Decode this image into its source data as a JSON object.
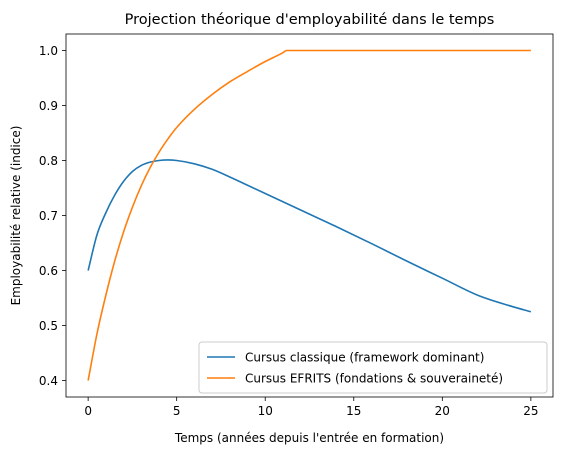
{
  "chart_data": {
    "type": "line",
    "title": "Projection théorique d'employabilité dans le temps",
    "xlabel": "Temps (années depuis l'entrée en formation)",
    "ylabel": "Employabilité relative (indice)",
    "xlim": [
      -1.25,
      26.25
    ],
    "ylim": [
      0.37,
      1.03
    ],
    "xticks": [
      0,
      5,
      10,
      15,
      20,
      25
    ],
    "yticks": [
      0.4,
      0.5,
      0.6,
      0.7,
      0.8,
      0.9,
      1.0
    ],
    "xtick_labels": [
      "0",
      "5",
      "10",
      "15",
      "20",
      "25"
    ],
    "ytick_labels": [
      "0.4",
      "0.5",
      "0.6",
      "0.7",
      "0.8",
      "0.9",
      "1.0"
    ],
    "grid": false,
    "legend_position": "lower-right",
    "series": [
      {
        "name": "Cursus classique (framework dominant)",
        "color": "#1f77b4",
        "x": [
          0,
          0.5,
          1,
          1.5,
          2,
          2.5,
          3,
          3.5,
          4,
          4.5,
          5,
          6,
          7,
          8,
          9,
          10,
          12,
          14,
          16,
          18,
          20,
          22,
          24,
          25
        ],
        "y": [
          0.6,
          0.665,
          0.705,
          0.737,
          0.762,
          0.78,
          0.791,
          0.797,
          0.8,
          0.801,
          0.8,
          0.794,
          0.784,
          0.77,
          0.755,
          0.74,
          0.71,
          0.68,
          0.649,
          0.617,
          0.586,
          0.555,
          0.534,
          0.525
        ]
      },
      {
        "name": "Cursus EFRITS (fondations & souveraineté)",
        "color": "#ff7f0e",
        "x": [
          0,
          0.5,
          1,
          1.5,
          2,
          2.5,
          3,
          3.5,
          4,
          4.5,
          5,
          6,
          7,
          8,
          9,
          10,
          11,
          11.2,
          12,
          15,
          20,
          25
        ],
        "y": [
          0.4,
          0.485,
          0.555,
          0.617,
          0.67,
          0.715,
          0.754,
          0.787,
          0.815,
          0.839,
          0.86,
          0.893,
          0.92,
          0.943,
          0.962,
          0.98,
          0.996,
          1.0,
          1.0,
          1.0,
          1.0,
          1.0
        ]
      }
    ]
  }
}
